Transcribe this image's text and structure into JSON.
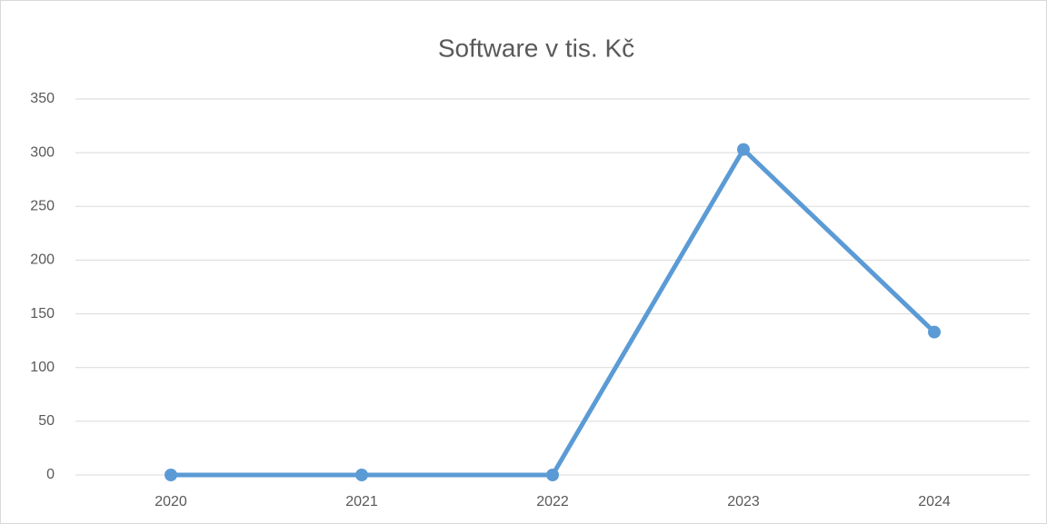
{
  "chart_data": {
    "type": "line",
    "title": "Software v tis. Kč",
    "categories": [
      "2020",
      "2021",
      "2022",
      "2023",
      "2024"
    ],
    "values": [
      0,
      0,
      0,
      303,
      133
    ],
    "color": "#5b9bd5",
    "ylim": [
      0,
      350
    ],
    "yticks": [
      0,
      50,
      100,
      150,
      200,
      250,
      300,
      350
    ],
    "grid": true
  }
}
